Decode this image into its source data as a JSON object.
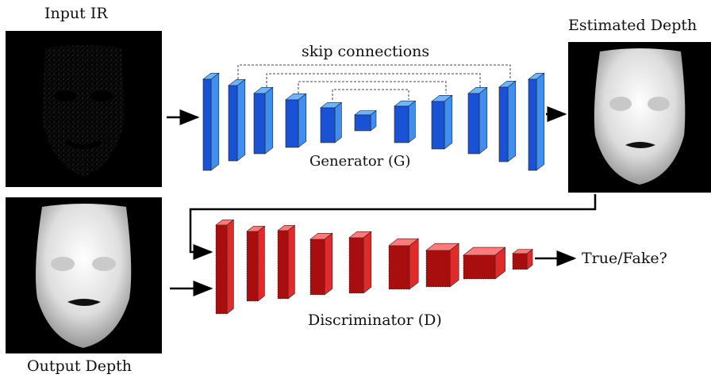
{
  "labels": {
    "input": "Input IR",
    "estimated": "Estimated Depth",
    "output": "Output Depth",
    "skip": "skip connections",
    "generator": "Generator (G)",
    "discriminator": "Discriminator (D)",
    "result": "True/Fake?"
  },
  "colors": {
    "generator_front": "#1a52d6",
    "generator_side": "#3f8ff0",
    "generator_top": "#6fb4ff",
    "discriminator_front": "#a80e0e",
    "discriminator_side": "#e22a2a",
    "discriminator_top": "#ff7a7a",
    "panel_background": "#000000",
    "arrow": "#000000"
  },
  "icons": {
    "input": "face-ir-image",
    "estimated": "face-depth-map",
    "output": "face-depth-map",
    "generator": "encoder-decoder-blocks",
    "discriminator": "convolutional-blocks"
  }
}
